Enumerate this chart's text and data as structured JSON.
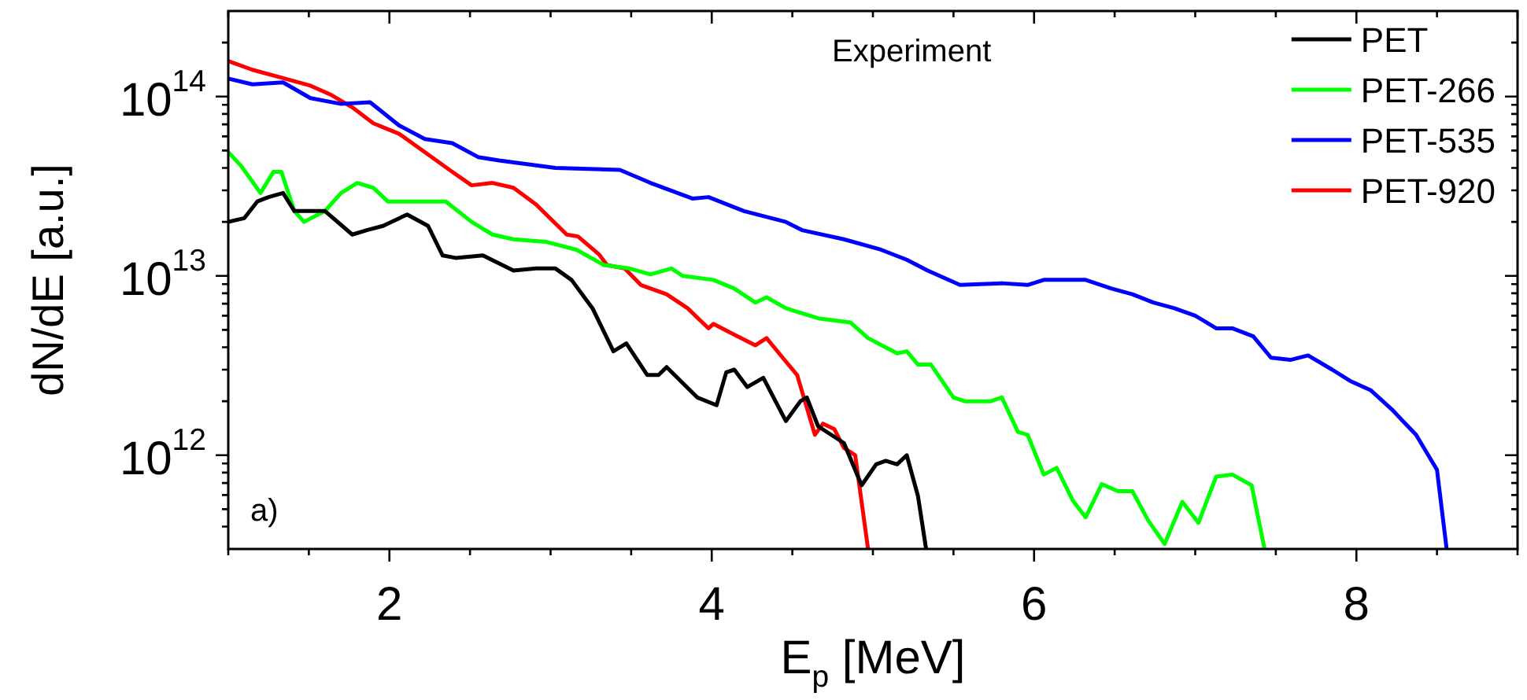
{
  "chart_data": {
    "type": "line",
    "xlabel": "E$_{p}$ [MeV]",
    "ylabel": "dN/dE [a.u.]",
    "log": "y",
    "legend": "top right",
    "marker": "none",
    "line_style": "solid",
    "grid": false,
    "annotations": [
      "Experiment",
      "a)"
    ],
    "xlim": [
      1,
      9
    ],
    "ylim": [
      300000000000.0,
      300000000000000.0
    ],
    "xticks": [
      {
        "value": 1,
        "label": null
      },
      {
        "value": 1.5,
        "label": null
      },
      2,
      {
        "value": 2.5,
        "label": null
      },
      {
        "value": 3,
        "label": null
      },
      {
        "value": 3.5,
        "label": null
      },
      4,
      {
        "value": 4.5,
        "label": null
      },
      {
        "value": 5,
        "label": null
      },
      {
        "value": 5.5,
        "label": null
      },
      6,
      {
        "value": 6.5,
        "label": null
      },
      {
        "value": 7,
        "label": null
      },
      {
        "value": 7.5,
        "label": null
      },
      8,
      {
        "value": 8.5,
        "label": null
      },
      {
        "value": 9,
        "label": null
      }
    ],
    "yticks": [
      {
        "value": 400000000000.0,
        "label": null
      },
      {
        "value": 500000000000.0,
        "label": null
      },
      {
        "value": 600000000000.0,
        "label": null
      },
      {
        "value": 700000000000.0,
        "label": null
      },
      {
        "value": 800000000000.0,
        "label": null
      },
      {
        "value": 900000000000.0,
        "label": null
      },
      {
        "value": 1000000000000.0,
        "label": "10$^{12}$"
      },
      {
        "value": 2000000000000.0,
        "label": null
      },
      {
        "value": 3000000000000.0,
        "label": null
      },
      {
        "value": 4000000000000.0,
        "label": null
      },
      {
        "value": 5000000000000.0,
        "label": null
      },
      {
        "value": 6000000000000.0,
        "label": null
      },
      {
        "value": 7000000000000.0,
        "label": null
      },
      {
        "value": 8000000000000.0,
        "label": null
      },
      {
        "value": 9000000000000.0,
        "label": null
      },
      {
        "value": 10000000000000.0,
        "label": "10$^{13}$"
      },
      {
        "value": 20000000000000.0,
        "label": null
      },
      {
        "value": 30000000000000.0,
        "label": null
      },
      {
        "value": 40000000000000.0,
        "label": null
      },
      {
        "value": 50000000000000.0,
        "label": null
      },
      {
        "value": 60000000000000.0,
        "label": null
      },
      {
        "value": 70000000000000.0,
        "label": null
      },
      {
        "value": 80000000000000.0,
        "label": null
      },
      {
        "value": 90000000000000.0,
        "label": null
      },
      {
        "value": 100000000000000.0,
        "label": "10$^{14}$"
      },
      {
        "value": 200000000000000.0,
        "label": null
      }
    ],
    "series": [
      {
        "name": "PET",
        "color": "#000000",
        "x": [
          1.0,
          1.1,
          1.18,
          1.25,
          1.34,
          1.41,
          1.49,
          1.6,
          1.77,
          1.86,
          1.96,
          2.11,
          2.24,
          2.33,
          2.41,
          2.58,
          2.77,
          2.91,
          3.03,
          3.13,
          3.26,
          3.39,
          3.47,
          3.6,
          3.67,
          3.72,
          3.91,
          4.03,
          4.09,
          4.14,
          4.22,
          4.32,
          4.46,
          4.55,
          4.59,
          4.66,
          4.82,
          4.93,
          5.02,
          5.08,
          5.15,
          5.21,
          5.28,
          5.33
        ],
        "values": [
          20000000000000.0,
          21000000000000.0,
          26000000000000.0,
          27500000000000.0,
          29000000000000.0,
          23000000000000.0,
          23000000000000.0,
          23000000000000.0,
          17000000000000.0,
          18000000000000.0,
          19000000000000.0,
          22000000000000.0,
          19000000000000.0,
          13000000000000.0,
          12600000000000.0,
          13000000000000.0,
          10700000000000.0,
          11000000000000.0,
          11000000000000.0,
          9500000000000.0,
          6600000000000.0,
          3800000000000.0,
          4200000000000.0,
          2800000000000.0,
          2800000000000.0,
          3100000000000.0,
          2100000000000.0,
          1900000000000.0,
          2900000000000.0,
          3000000000000.0,
          2400000000000.0,
          2700000000000.0,
          1550000000000.0,
          2000000000000.0,
          2100000000000.0,
          1450000000000.0,
          1170000000000.0,
          680000000000.0,
          890000000000.0,
          930000000000.0,
          890000000000.0,
          1000000000000.0,
          590000000000.0,
          300000000000.0
        ]
      },
      {
        "name": "PET-266",
        "color": "#00ff00",
        "x": [
          1.0,
          1.08,
          1.2,
          1.28,
          1.33,
          1.41,
          1.47,
          1.6,
          1.7,
          1.8,
          1.9,
          1.99,
          2.22,
          2.35,
          2.51,
          2.64,
          2.77,
          2.97,
          3.16,
          3.33,
          3.49,
          3.62,
          3.75,
          3.82,
          4.01,
          4.14,
          4.27,
          4.34,
          4.46,
          4.66,
          4.86,
          4.97,
          5.15,
          5.21,
          5.28,
          5.36,
          5.5,
          5.57,
          5.73,
          5.8,
          5.9,
          5.96,
          6.06,
          6.14,
          6.24,
          6.32,
          6.42,
          6.52,
          6.61,
          6.71,
          6.81,
          6.92,
          7.02,
          7.13,
          7.23,
          7.35,
          7.43
        ],
        "values": [
          49000000000000.0,
          41000000000000.0,
          29000000000000.0,
          38000000000000.0,
          38000000000000.0,
          23000000000000.0,
          20000000000000.0,
          23000000000000.0,
          29000000000000.0,
          33000000000000.0,
          31000000000000.0,
          26000000000000.0,
          26000000000000.0,
          26000000000000.0,
          20000000000000.0,
          17000000000000.0,
          16000000000000.0,
          15500000000000.0,
          14000000000000.0,
          11500000000000.0,
          11000000000000.0,
          10200000000000.0,
          11000000000000.0,
          10000000000000.0,
          9500000000000.0,
          8500000000000.0,
          7100000000000.0,
          7600000000000.0,
          6600000000000.0,
          5800000000000.0,
          5500000000000.0,
          4500000000000.0,
          3700000000000.0,
          3800000000000.0,
          3200000000000.0,
          3200000000000.0,
          2100000000000.0,
          2000000000000.0,
          2000000000000.0,
          2100000000000.0,
          1350000000000.0,
          1300000000000.0,
          780000000000.0,
          850000000000.0,
          560000000000.0,
          450000000000.0,
          690000000000.0,
          630000000000.0,
          630000000000.0,
          430000000000.0,
          320000000000.0,
          550000000000.0,
          420000000000.0,
          760000000000.0,
          780000000000.0,
          680000000000.0,
          300000000000.0
        ]
      },
      {
        "name": "PET-535",
        "color": "#0000ff",
        "x": [
          1.0,
          1.15,
          1.34,
          1.51,
          1.7,
          1.88,
          2.06,
          2.22,
          2.39,
          2.55,
          2.68,
          3.03,
          3.43,
          3.62,
          3.88,
          3.98,
          4.2,
          4.46,
          4.56,
          4.82,
          5.05,
          5.21,
          5.34,
          5.54,
          5.8,
          5.96,
          6.06,
          6.32,
          6.48,
          6.61,
          6.74,
          6.87,
          7.0,
          7.13,
          7.23,
          7.36,
          7.47,
          7.59,
          7.7,
          7.85,
          7.96,
          8.09,
          8.22,
          8.37,
          8.5,
          8.56
        ],
        "values": [
          126000000000000.0,
          117000000000000.0,
          120000000000000.0,
          98000000000000.0,
          91000000000000.0,
          93000000000000.0,
          69000000000000.0,
          58000000000000.0,
          55000000000000.0,
          46000000000000.0,
          44000000000000.0,
          40000000000000.0,
          39000000000000.0,
          33000000000000.0,
          27000000000000.0,
          27500000000000.0,
          23000000000000.0,
          20000000000000.0,
          18000000000000.0,
          16000000000000.0,
          14000000000000.0,
          12300000000000.0,
          10700000000000.0,
          8900000000000.0,
          9100000000000.0,
          8900000000000.0,
          9500000000000.0,
          9500000000000.0,
          8500000000000.0,
          7900000000000.0,
          7100000000000.0,
          6600000000000.0,
          6000000000000.0,
          5100000000000.0,
          5100000000000.0,
          4600000000000.0,
          3500000000000.0,
          3400000000000.0,
          3600000000000.0,
          3000000000000.0,
          2600000000000.0,
          2300000000000.0,
          1800000000000.0,
          1300000000000.0,
          830000000000.0,
          300000000000.0
        ]
      },
      {
        "name": "PET-920",
        "color": "#ff0000",
        "x": [
          1.0,
          1.15,
          1.31,
          1.51,
          1.64,
          1.77,
          1.9,
          2.06,
          2.22,
          2.39,
          2.51,
          2.64,
          2.77,
          2.91,
          3.1,
          3.17,
          3.3,
          3.35,
          3.46,
          3.56,
          3.72,
          3.85,
          3.98,
          4.01,
          4.14,
          4.27,
          4.34,
          4.44,
          4.53,
          4.64,
          4.69,
          4.76,
          4.82,
          4.89,
          4.97
        ],
        "values": [
          158000000000000.0,
          141000000000000.0,
          129000000000000.0,
          115000000000000.0,
          102000000000000.0,
          87000000000000.0,
          71000000000000.0,
          62000000000000.0,
          49000000000000.0,
          38000000000000.0,
          32000000000000.0,
          33000000000000.0,
          31000000000000.0,
          25000000000000.0,
          17000000000000.0,
          16600000000000.0,
          13200000000000.0,
          11500000000000.0,
          11000000000000.0,
          8900000000000.0,
          7900000000000.0,
          6600000000000.0,
          5100000000000.0,
          5400000000000.0,
          4700000000000.0,
          4100000000000.0,
          4500000000000.0,
          3500000000000.0,
          2800000000000.0,
          1300000000000.0,
          1500000000000.0,
          1400000000000.0,
          1100000000000.0,
          1000000000000.0,
          300000000000.0
        ]
      }
    ]
  }
}
